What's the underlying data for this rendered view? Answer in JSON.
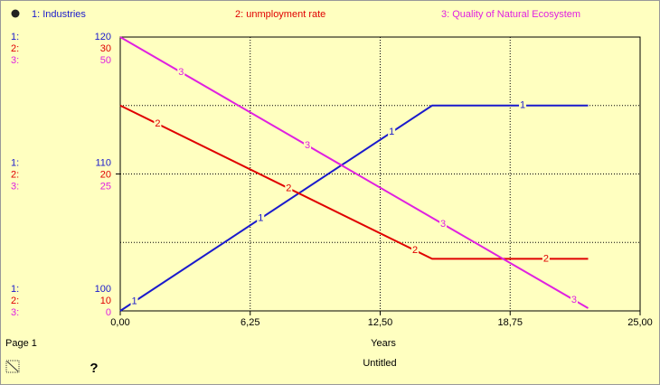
{
  "chart_data": {
    "type": "line",
    "x": [
      0,
      15,
      22.5
    ],
    "xlim": [
      0,
      25
    ],
    "xticks": [
      {
        "value": 0,
        "label": "0,00"
      },
      {
        "value": 6.25,
        "label": "6,25"
      },
      {
        "value": 12.5,
        "label": "12,50"
      },
      {
        "value": 18.75,
        "label": "18,75"
      },
      {
        "value": 25,
        "label": "25,00"
      }
    ],
    "xlabel": "Years",
    "grid": true,
    "ygrid": [
      100,
      105,
      110,
      115,
      120
    ],
    "series": [
      {
        "name": "1: Industries",
        "marker": "1",
        "axis_prefix": "1:",
        "color": "#1a1acc",
        "values": [
          100,
          115,
          115
        ],
        "ylim": [
          100,
          120
        ],
        "yticks": [
          100,
          110,
          120
        ]
      },
      {
        "name": "2: unmployment rate",
        "marker": "2",
        "axis_prefix": "2:",
        "color": "#e00000",
        "values": [
          25,
          13.8,
          13.8
        ],
        "ylim": [
          10,
          30
        ],
        "yticks": [
          10,
          20,
          30
        ]
      },
      {
        "name": "3: Quality of Natural Ecosystem",
        "marker": "3",
        "axis_prefix": "3:",
        "color": "#e020e0",
        "values": [
          50,
          17,
          0.5
        ],
        "ylim": [
          0,
          50
        ],
        "yticks": [
          0,
          25,
          50
        ]
      }
    ]
  },
  "footer": {
    "page": "Page 1",
    "title": "Untitled",
    "help": "?"
  }
}
